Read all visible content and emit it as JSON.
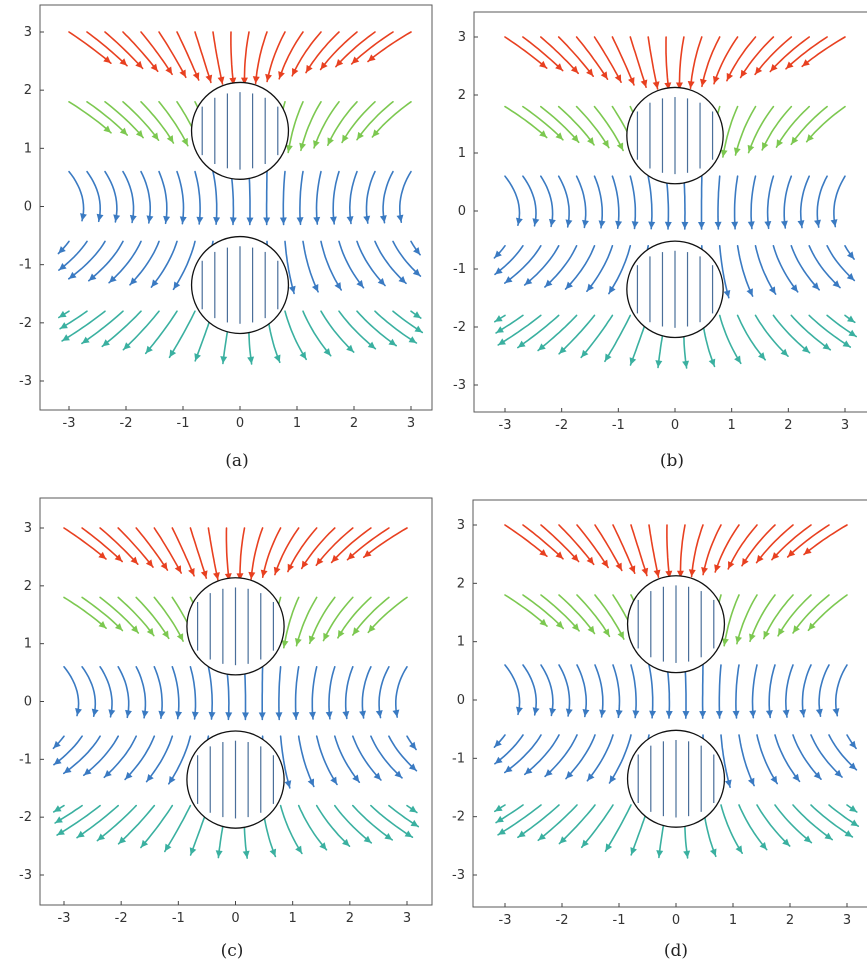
{
  "chart_data": [
    {
      "type": "streamplot",
      "caption": "(a)",
      "xlim": [
        -3,
        3
      ],
      "ylim": [
        -3,
        3
      ],
      "xticks": [
        "-3",
        "-2",
        "-1",
        "0",
        "1",
        "2",
        "3"
      ],
      "yticks": [
        "3",
        "2",
        "1",
        "0",
        "-1",
        "-2",
        "-3"
      ],
      "regions": [
        {
          "shape": "circle",
          "cx": 0,
          "cy": 1.3,
          "r": 0.85
        },
        {
          "shape": "circle",
          "cx": 0,
          "cy": -1.35,
          "r": 0.85
        }
      ],
      "colormap": [
        "#5a1a8a",
        "#3a7ac2",
        "#3ab0a0",
        "#7cc850",
        "#e8b020",
        "#e84020"
      ]
    },
    {
      "type": "streamplot",
      "caption": "(b)",
      "xlim": [
        -3,
        3
      ],
      "ylim": [
        -3,
        3
      ],
      "xticks": [
        "-3",
        "-2",
        "-1",
        "0",
        "1",
        "2",
        "3"
      ],
      "yticks": [
        "3",
        "2",
        "1",
        "0",
        "-1",
        "-2",
        "-3"
      ],
      "regions": [
        {
          "shape": "circle",
          "cx": 0,
          "cy": 1.3,
          "r": 0.85
        },
        {
          "shape": "circle",
          "cx": 0,
          "cy": -1.35,
          "r": 0.85
        }
      ],
      "colormap": [
        "#5a1a8a",
        "#3a7ac2",
        "#3ab0a0",
        "#7cc850",
        "#e8b020",
        "#e84020"
      ]
    },
    {
      "type": "streamplot",
      "caption": "(c)",
      "xlim": [
        -3,
        3
      ],
      "ylim": [
        -3,
        3
      ],
      "xticks": [
        "-3",
        "-2",
        "-1",
        "0",
        "1",
        "2",
        "3"
      ],
      "yticks": [
        "3",
        "2",
        "1",
        "0",
        "-1",
        "-2",
        "-3"
      ],
      "regions": [
        {
          "shape": "circle",
          "cx": 0,
          "cy": 1.3,
          "r": 0.85
        },
        {
          "shape": "circle",
          "cx": 0,
          "cy": -1.35,
          "r": 0.85
        }
      ],
      "colormap": [
        "#5a1a8a",
        "#3a7ac2",
        "#3ab0a0",
        "#7cc850",
        "#e8b020",
        "#e84020"
      ]
    },
    {
      "type": "streamplot",
      "caption": "(d)",
      "xlim": [
        -3,
        3
      ],
      "ylim": [
        -3,
        3
      ],
      "xticks": [
        "-3",
        "-2",
        "-1",
        "0",
        "1",
        "2",
        "3"
      ],
      "yticks": [
        "3",
        "2",
        "1",
        "0",
        "-1",
        "-2",
        "-3"
      ],
      "regions": [
        {
          "shape": "circle",
          "cx": 0,
          "cy": 1.3,
          "r": 0.85
        },
        {
          "shape": "circle",
          "cx": 0,
          "cy": -1.35,
          "r": 0.85
        }
      ],
      "colormap": [
        "#5a1a8a",
        "#3a7ac2",
        "#3ab0a0",
        "#7cc850",
        "#e8b020",
        "#e84020"
      ]
    }
  ]
}
